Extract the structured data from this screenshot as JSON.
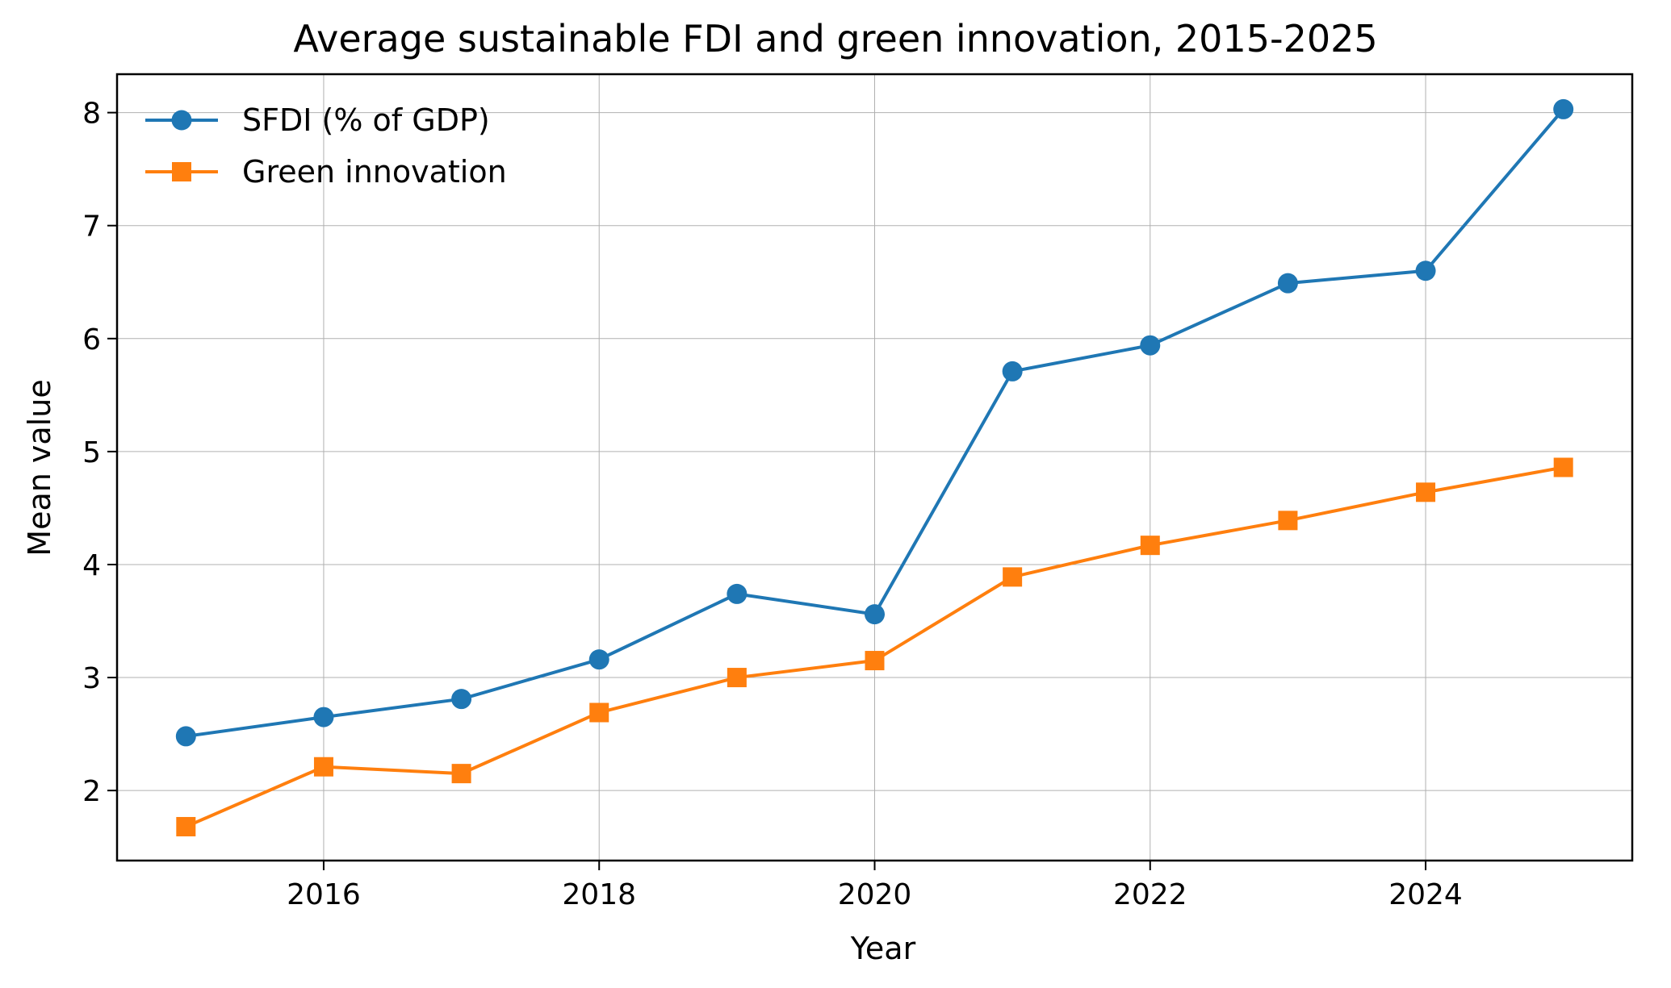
{
  "chart_data": {
    "type": "line",
    "title": "Average sustainable FDI and green innovation, 2015-2025",
    "xlabel": "Year",
    "ylabel": "Mean value",
    "x": [
      2015,
      2016,
      2017,
      2018,
      2019,
      2020,
      2021,
      2022,
      2023,
      2024,
      2025
    ],
    "xlim": [
      2014.5,
      2025.5
    ],
    "ylim": [
      1.38,
      8.34
    ],
    "xticks": [
      "2016",
      "2018",
      "2020",
      "2022",
      "2024"
    ],
    "yticks": [
      "2",
      "3",
      "4",
      "5",
      "6",
      "7",
      "8"
    ],
    "grid": true,
    "legend_position": "top-left",
    "series": [
      {
        "name": "SFDI (% of GDP)",
        "color": "#1f77b4",
        "marker": "circle",
        "values": [
          2.48,
          2.65,
          2.81,
          3.16,
          3.74,
          3.56,
          5.71,
          5.94,
          6.49,
          6.6,
          8.03
        ]
      },
      {
        "name": "Green innovation",
        "color": "#ff7f0e",
        "marker": "square",
        "values": [
          1.68,
          2.21,
          2.15,
          2.69,
          3.0,
          3.15,
          3.89,
          4.17,
          4.39,
          4.64,
          4.86
        ]
      }
    ]
  }
}
